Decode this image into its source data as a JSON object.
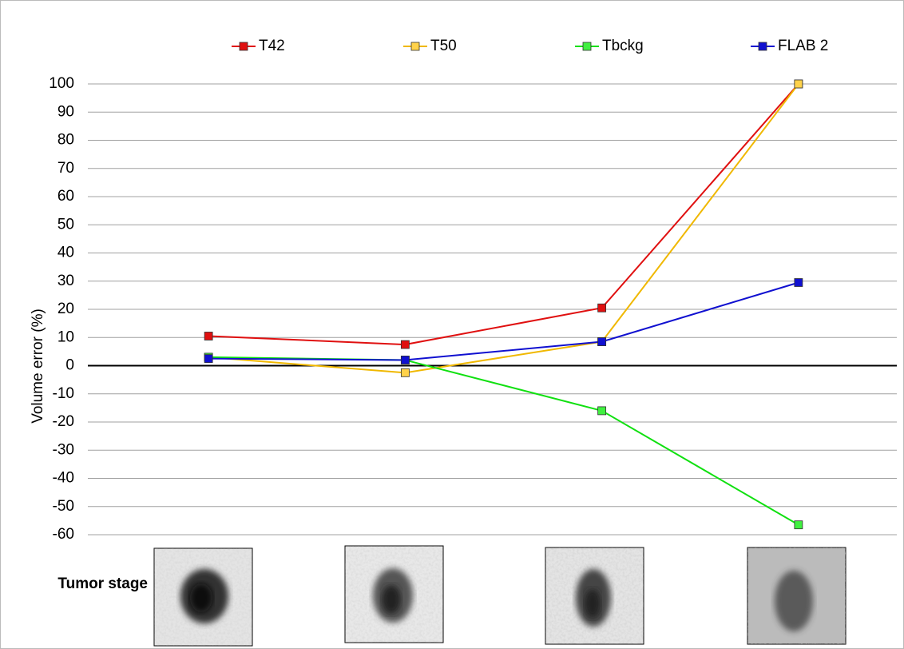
{
  "chart_data": {
    "type": "line",
    "y_label": "Volume error (%)",
    "x_label": "Tumor stage",
    "categories": [
      null,
      null,
      null,
      null
    ],
    "series": [
      {
        "name": "T42",
        "color": "#e01010",
        "marker_color": "#e01010",
        "values": [
          10.5,
          7.5,
          20.5,
          100
        ]
      },
      {
        "name": "T50",
        "color": "#f0b800",
        "marker_color": "#ffd24a",
        "values": [
          3,
          -2.5,
          8.5,
          100
        ]
      },
      {
        "name": "Tbckg",
        "color": "#10e010",
        "marker_color": "#40f040",
        "values": [
          3,
          2,
          -16,
          -56.5
        ]
      },
      {
        "name": "FLAB 2",
        "color": "#1010d0",
        "marker_color": "#1010d0",
        "values": [
          2.5,
          2,
          8.5,
          29.5
        ]
      }
    ],
    "ylim": [
      -60,
      100
    ],
    "yticks": [
      -60,
      -50,
      -40,
      -30,
      -20,
      -10,
      0,
      10,
      20,
      30,
      40,
      50,
      60,
      70,
      80,
      90,
      100
    ],
    "grid": true,
    "legend": "top"
  }
}
